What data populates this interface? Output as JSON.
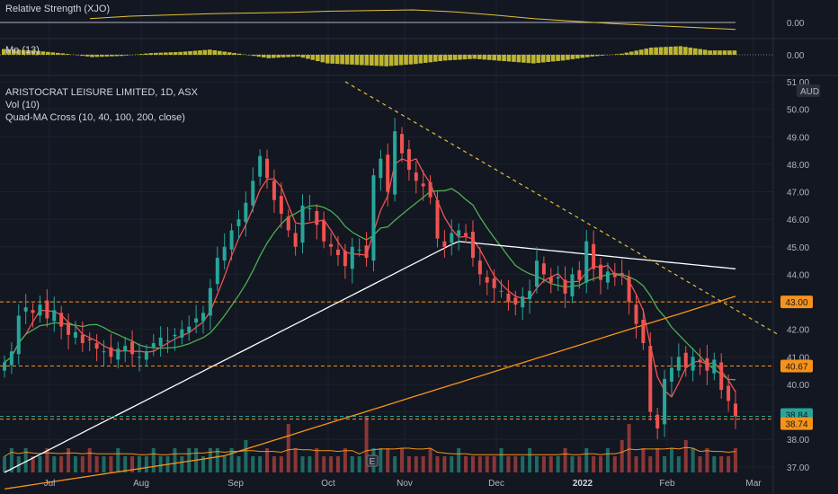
{
  "legend": {
    "symbol": "ARISTOCRAT LEISURE LIMITED, 1D, ASX",
    "volume": "Vol (10)",
    "quad_ma": "Quad-MA Cross (10, 40, 100, 200, close)",
    "relative_strength": "Relative Strength (XJO)",
    "momentum": "Mo (13)"
  },
  "currency": "AUD",
  "colors": {
    "background": "#131722",
    "up": "#26a69a",
    "down": "#ef5350",
    "ma10": "#ef5350",
    "ma40": "#4caf50",
    "ma100": "#ffffff",
    "ma200": "#f7931a",
    "level": "#f7931a",
    "trend": "#e3c13b",
    "volume_ma": "#f7931a",
    "momentum": "#bdb531",
    "rs_line": "#e3c13b"
  },
  "chart_data": [
    {
      "type": "line",
      "name": "relative_strength_panel",
      "title": "Relative Strength (XJO)",
      "reference_value": 0.0,
      "ytick_labels": [
        "0.00"
      ],
      "description_values": [
        0.3,
        0.5,
        0.6,
        0.7,
        0.75,
        0.8,
        0.9,
        0.95,
        1.0,
        0.85,
        0.6,
        0.3,
        0.1,
        -0.1,
        -0.25,
        -0.4,
        -0.55
      ]
    },
    {
      "type": "bar",
      "name": "momentum_panel",
      "title": "Mo (13)",
      "reference_value": 0.0,
      "ytick_labels": [
        "0.00"
      ],
      "values": [
        2.0,
        1.5,
        0.5,
        -0.8,
        -0.4,
        0.6,
        1.0,
        1.8,
        0.4,
        -1.2,
        -0.6,
        -3.0,
        -3.5,
        -4.0,
        -3.2,
        -2.0,
        -1.4,
        -2.2,
        -3.0,
        -2.0,
        -0.6,
        0.4,
        2.5,
        3.0,
        1.5
      ]
    },
    {
      "type": "candlestick",
      "name": "price_panel",
      "title": "ARISTOCRAT LEISURE LIMITED, 1D, ASX",
      "ylabel": "AUD",
      "ylim": [
        36.8,
        51.0
      ],
      "yticks": [
        37.0,
        38.0,
        39.0,
        40.0,
        41.0,
        42.0,
        43.0,
        44.0,
        45.0,
        46.0,
        47.0,
        48.0,
        49.0,
        50.0,
        51.0
      ],
      "ytick_labels": [
        "37.00",
        "38.00",
        "39.00",
        "40.00",
        "41.00",
        "42.00",
        "43.00",
        "44.00",
        "45.00",
        "46.00",
        "47.00",
        "48.00",
        "49.00",
        "50.00",
        "51.00"
      ],
      "x_labels": [
        "Jul",
        "Aug",
        "Sep",
        "Oct",
        "Nov",
        "Dec",
        "2022",
        "Feb",
        "Mar"
      ],
      "horizontal_levels": [
        {
          "value": 43.0,
          "label": "43.00"
        },
        {
          "value": 40.67,
          "label": "40.67"
        },
        {
          "value": 38.84,
          "label": "38.84",
          "kind": "last-price"
        },
        {
          "value": 38.74,
          "label": "38.74"
        }
      ],
      "trendline": {
        "from": {
          "date": "2021-10-25",
          "value": 51.0
        },
        "to": {
          "date": "2022-02-25",
          "value": 41.8
        }
      },
      "closes": [
        40.8,
        41.2,
        42.5,
        42.8,
        42.6,
        42.9,
        42.4,
        42.7,
        42.1,
        41.8,
        41.9,
        41.5,
        41.6,
        41.3,
        41.2,
        41.0,
        41.3,
        41.4,
        41.1,
        41.0,
        41.2,
        41.5,
        41.7,
        41.6,
        41.8,
        42.0,
        42.1,
        42.4,
        42.6,
        43.5,
        44.6,
        45.0,
        45.6,
        46.0,
        46.6,
        47.4,
        48.3,
        47.5,
        46.7,
        46.2,
        45.6,
        45.0,
        46.5,
        46.4,
        45.8,
        45.2,
        45.0,
        44.7,
        44.3,
        45.0,
        44.9,
        44.6,
        47.6,
        48.2,
        47.0,
        49.2,
        48.4,
        47.8,
        47.4,
        47.2,
        46.8,
        45.3,
        45.0,
        45.5,
        45.6,
        45.4,
        44.6,
        44.0,
        43.7,
        43.5,
        43.4,
        43.0,
        42.9,
        43.2,
        43.4,
        44.5,
        44.0,
        43.7,
        43.9,
        43.3,
        44.0,
        43.8,
        45.2,
        44.2,
        43.8,
        44.1,
        43.9,
        44.0,
        43.0,
        42.2,
        41.5,
        39.0,
        38.4,
        40.2,
        40.6,
        41.0,
        40.6,
        41.0,
        40.8,
        40.5,
        40.9,
        39.8,
        39.4,
        38.84
      ],
      "moving_averages": {
        "ma10": "red",
        "ma40": "green",
        "ma100": "white",
        "ma200": "orange"
      }
    },
    {
      "type": "bar",
      "name": "volume_panel",
      "title": "Vol (10)",
      "values": [
        2,
        3,
        2,
        3,
        2,
        2,
        3,
        2,
        2,
        3,
        2,
        2,
        3,
        2,
        2,
        2,
        3,
        2,
        2,
        2,
        2,
        3,
        2,
        2,
        3,
        2,
        3,
        3,
        2,
        3,
        3,
        2,
        3,
        2,
        4,
        2,
        2,
        3,
        2,
        2,
        6,
        3,
        2,
        2,
        3,
        2,
        2,
        2,
        3,
        2,
        2,
        7,
        3,
        3,
        3,
        2,
        3,
        2,
        2,
        2,
        3,
        2,
        2,
        2,
        3,
        2,
        2,
        2,
        2,
        2,
        3,
        2,
        2,
        2,
        3,
        2,
        2,
        2,
        2,
        3,
        2,
        2,
        3,
        2,
        2,
        3,
        2,
        4,
        6,
        2,
        3,
        2,
        3,
        2,
        3,
        2,
        4,
        3,
        2,
        3,
        2,
        2,
        2,
        3
      ]
    }
  ],
  "earnings_marker": "E"
}
